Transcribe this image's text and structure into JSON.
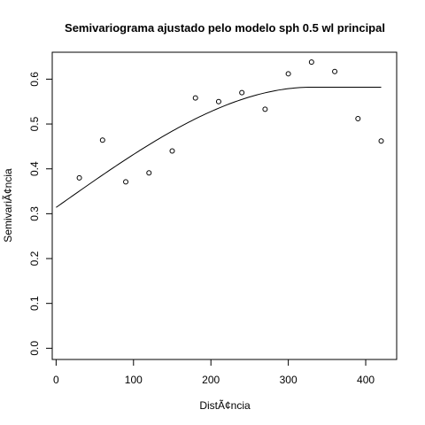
{
  "chart_data": {
    "type": "scatter",
    "title": "Semivariograma ajustado pelo modelo sph 0.5 wl principal",
    "xlabel": "DistÃ¢ncia",
    "ylabel": "SemivariÃ¢ncia",
    "xlim": [
      -5,
      440
    ],
    "ylim": [
      -0.025,
      0.66
    ],
    "x_ticks": [
      0,
      100,
      200,
      300,
      400
    ],
    "x_tick_labels": [
      "0",
      "100",
      "200",
      "300",
      "400"
    ],
    "y_ticks": [
      0.0,
      0.1,
      0.2,
      0.3,
      0.4,
      0.5,
      0.6
    ],
    "y_tick_labels": [
      "0.0",
      "0.1",
      "0.2",
      "0.3",
      "0.4",
      "0.5",
      "0.6"
    ],
    "grid": false,
    "legend": "none",
    "series": [
      {
        "kind": "points",
        "x": [
          30,
          60,
          90,
          120,
          150,
          180,
          210,
          240,
          270,
          300,
          330,
          360,
          390,
          420
        ],
        "y": [
          0.38,
          0.464,
          0.371,
          0.391,
          0.44,
          0.558,
          0.55,
          0.57,
          0.533,
          0.612,
          0.638,
          0.617,
          0.512,
          0.462
        ]
      },
      {
        "kind": "line",
        "model": "spherical",
        "nugget": 0.314,
        "partial_sill": 0.268,
        "range": 330,
        "x_from": 0,
        "x_to": 420
      }
    ]
  }
}
